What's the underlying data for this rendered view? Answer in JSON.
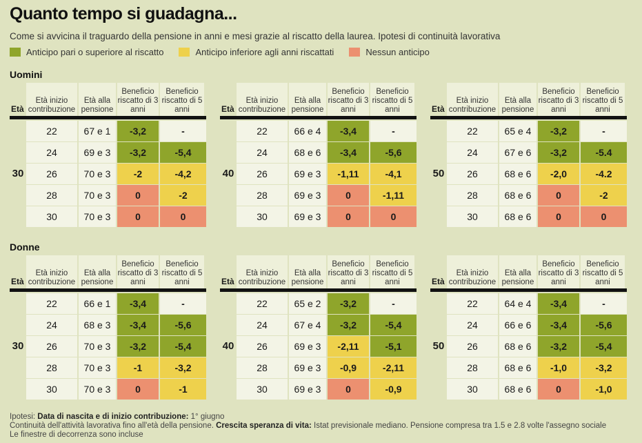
{
  "title": "Quanto tempo si guadagna...",
  "subtitle": "Come si avvicina il traguardo della pensione in anni e mesi grazie al riscatto della laurea. Ipotesi di continuità lavorativa",
  "legend": [
    {
      "label": "Anticipo pari o superiore al riscatto",
      "color": "#8fa52b"
    },
    {
      "label": "Anticipo inferiore agli anni riscattati",
      "color": "#eed14c"
    },
    {
      "label": "Nessun anticipo",
      "color": "#ec9070"
    }
  ],
  "headers": {
    "eta": "Età",
    "inizio": "Età inizio contribuzione",
    "pensione": "Età alla pensione",
    "b3": "Beneficio riscatto di 3 anni",
    "b5": "Beneficio riscatto di 5 anni"
  },
  "sections": [
    {
      "label": "Uomini",
      "blocks": [
        {
          "age": "30",
          "rows": [
            {
              "inizio": "22",
              "pensione": "67 e 1",
              "b3": "-3,2",
              "b3c": "g",
              "b5": "-",
              "b5c": "n"
            },
            {
              "inizio": "24",
              "pensione": "69 e 3",
              "b3": "-3,2",
              "b3c": "g",
              "b5": "-5,4",
              "b5c": "g"
            },
            {
              "inizio": "26",
              "pensione": "70 e 3",
              "b3": "-2",
              "b3c": "y",
              "b5": "-4,2",
              "b5c": "y"
            },
            {
              "inizio": "28",
              "pensione": "70 e 3",
              "b3": "0",
              "b3c": "o",
              "b5": "-2",
              "b5c": "y"
            },
            {
              "inizio": "30",
              "pensione": "70 e 3",
              "b3": "0",
              "b3c": "o",
              "b5": "0",
              "b5c": "o"
            }
          ]
        },
        {
          "age": "40",
          "rows": [
            {
              "inizio": "22",
              "pensione": "66 e 4",
              "b3": "-3,4",
              "b3c": "g",
              "b5": "-",
              "b5c": "n"
            },
            {
              "inizio": "24",
              "pensione": "68 e 6",
              "b3": "-3,4",
              "b3c": "g",
              "b5": "-5,6",
              "b5c": "g"
            },
            {
              "inizio": "26",
              "pensione": "69 e 3",
              "b3": "-1,11",
              "b3c": "y",
              "b5": "-4,1",
              "b5c": "y"
            },
            {
              "inizio": "28",
              "pensione": "69 e 3",
              "b3": "0",
              "b3c": "o",
              "b5": "-1,11",
              "b5c": "y"
            },
            {
              "inizio": "30",
              "pensione": "69 e 3",
              "b3": "0",
              "b3c": "o",
              "b5": "0",
              "b5c": "o"
            }
          ]
        },
        {
          "age": "50",
          "rows": [
            {
              "inizio": "22",
              "pensione": "65 e 4",
              "b3": "-3,2",
              "b3c": "g",
              "b5": "-",
              "b5c": "n"
            },
            {
              "inizio": "24",
              "pensione": "67 e 6",
              "b3": "-3,2",
              "b3c": "g",
              "b5": "-5.4",
              "b5c": "g"
            },
            {
              "inizio": "26",
              "pensione": "68 e 6",
              "b3": "-2,0",
              "b3c": "y",
              "b5": "-4.2",
              "b5c": "y"
            },
            {
              "inizio": "28",
              "pensione": "68 e 6",
              "b3": "0",
              "b3c": "o",
              "b5": "-2",
              "b5c": "y"
            },
            {
              "inizio": "30",
              "pensione": "68 e 6",
              "b3": "0",
              "b3c": "o",
              "b5": "0",
              "b5c": "o"
            }
          ]
        }
      ]
    },
    {
      "label": "Donne",
      "blocks": [
        {
          "age": "30",
          "rows": [
            {
              "inizio": "22",
              "pensione": "66 e 1",
              "b3": "-3,4",
              "b3c": "g",
              "b5": "-",
              "b5c": "n"
            },
            {
              "inizio": "24",
              "pensione": "68 e 3",
              "b3": "-3,4",
              "b3c": "g",
              "b5": "-5,6",
              "b5c": "g"
            },
            {
              "inizio": "26",
              "pensione": "70 e 3",
              "b3": "-3,2",
              "b3c": "g",
              "b5": "-5,4",
              "b5c": "g"
            },
            {
              "inizio": "28",
              "pensione": "70 e 3",
              "b3": "-1",
              "b3c": "y",
              "b5": "-3,2",
              "b5c": "y"
            },
            {
              "inizio": "30",
              "pensione": "70 e 3",
              "b3": "0",
              "b3c": "o",
              "b5": "-1",
              "b5c": "y"
            }
          ]
        },
        {
          "age": "40",
          "rows": [
            {
              "inizio": "22",
              "pensione": "65 e 2",
              "b3": "-3,2",
              "b3c": "g",
              "b5": "-",
              "b5c": "n"
            },
            {
              "inizio": "24",
              "pensione": "67 e 4",
              "b3": "-3,2",
              "b3c": "g",
              "b5": "-5,4",
              "b5c": "g"
            },
            {
              "inizio": "26",
              "pensione": "69 e 3",
              "b3": "-2,11",
              "b3c": "y",
              "b5": "-5,1",
              "b5c": "g"
            },
            {
              "inizio": "28",
              "pensione": "69 e 3",
              "b3": "-0,9",
              "b3c": "y",
              "b5": "-2,11",
              "b5c": "y"
            },
            {
              "inizio": "30",
              "pensione": "69 e 3",
              "b3": "0",
              "b3c": "o",
              "b5": "-0,9",
              "b5c": "y"
            }
          ]
        },
        {
          "age": "50",
          "rows": [
            {
              "inizio": "22",
              "pensione": "64 e 4",
              "b3": "-3,4",
              "b3c": "g",
              "b5": "-",
              "b5c": "n"
            },
            {
              "inizio": "24",
              "pensione": "66 e 6",
              "b3": "-3,4",
              "b3c": "g",
              "b5": "-5,6",
              "b5c": "g"
            },
            {
              "inizio": "26",
              "pensione": "68 e 6",
              "b3": "-3,2",
              "b3c": "g",
              "b5": "-5,4",
              "b5c": "g"
            },
            {
              "inizio": "28",
              "pensione": "68 e 6",
              "b3": "-1,0",
              "b3c": "y",
              "b5": "-3,2",
              "b5c": "y"
            },
            {
              "inizio": "30",
              "pensione": "68 e 6",
              "b3": "0",
              "b3c": "o",
              "b5": "-1,0",
              "b5c": "y"
            }
          ]
        }
      ]
    }
  ],
  "footnotes": {
    "line1_prefix": "Ipotesi: ",
    "line1_bold": "Data di nascita e di inizio contribuzione:",
    "line1_rest": " 1° giugno",
    "line2_text": "Continuità dell'attività lavorativa fino all'età della pensione. ",
    "line2_bold": "Crescita speranza di vita:",
    "line2_rest": " Istat previsionale mediano. Pensione compresa  tra 1.5 e 2.8 volte l'assegno sociale",
    "line3": "Le finestre di decorrenza sono incluse"
  }
}
